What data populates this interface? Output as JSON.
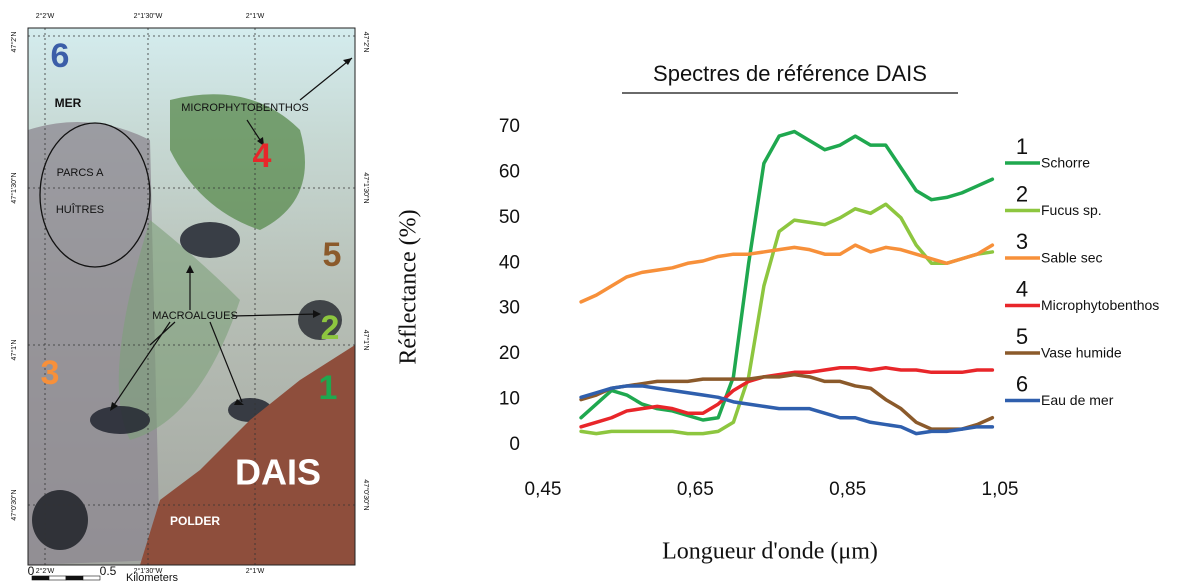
{
  "chart_data": {
    "type": "line",
    "title": "Spectres de référence DAIS",
    "xlabel": "Longueur d'onde (μm)",
    "ylabel": "Réflectance (%)",
    "x": [
      0.5,
      0.52,
      0.54,
      0.56,
      0.58,
      0.6,
      0.62,
      0.64,
      0.66,
      0.68,
      0.7,
      0.72,
      0.74,
      0.76,
      0.78,
      0.8,
      0.82,
      0.84,
      0.86,
      0.88,
      0.9,
      0.92,
      0.94,
      0.96,
      0.98,
      1.0,
      1.02,
      1.04
    ],
    "xlim": [
      0.45,
      1.05
    ],
    "xticks": [
      {
        "value": 0.45,
        "label": "0,45"
      },
      {
        "value": 0.65,
        "label": "0,65"
      },
      {
        "value": 0.85,
        "label": "0,85"
      },
      {
        "value": 1.05,
        "label": "1,05"
      }
    ],
    "ylim": [
      0,
      70
    ],
    "yticks": [
      0,
      10,
      20,
      30,
      40,
      50,
      60,
      70
    ],
    "grid": false,
    "series": [
      {
        "number": "1",
        "name": "Schorre",
        "color": "#1fa84f",
        "values": [
          6,
          9,
          12,
          11,
          9,
          8,
          7.5,
          6.5,
          5.5,
          6,
          15,
          40,
          62,
          68,
          69,
          67,
          65,
          66,
          68,
          66,
          66,
          61,
          56,
          54,
          54.5,
          55.5,
          57,
          58.5
        ]
      },
      {
        "number": "2",
        "name": "Fucus sp.",
        "color": "#8dc63f",
        "values": [
          3,
          2.5,
          3,
          3,
          3,
          3,
          3,
          2.5,
          2.5,
          3,
          5,
          15,
          35,
          47,
          49.5,
          49,
          48.5,
          50,
          52,
          51,
          53,
          50,
          44,
          40,
          40,
          41,
          42,
          42.5
        ]
      },
      {
        "number": "3",
        "name": "Sable sec",
        "color": "#f7903a",
        "values": [
          31.5,
          33,
          35,
          37,
          38,
          38.5,
          39,
          40,
          40.5,
          41.5,
          42,
          42,
          42.5,
          43,
          43.5,
          43,
          42,
          42,
          44,
          42.5,
          43.5,
          43,
          42,
          41,
          40,
          41,
          42,
          44
        ]
      },
      {
        "number": "4",
        "name": "Microphytobenthos",
        "color": "#e8262a",
        "values": [
          4,
          5,
          6,
          7.5,
          8,
          8.5,
          8,
          7,
          7,
          9,
          12,
          14,
          15,
          15.5,
          16,
          16,
          16.5,
          17,
          17,
          16.5,
          17,
          16.5,
          16.5,
          16,
          16,
          16,
          16.5,
          16.5
        ]
      },
      {
        "number": "5",
        "name": "Vase humide",
        "color": "#8b5a2b",
        "values": [
          10,
          11,
          12.5,
          13,
          13.5,
          14,
          14,
          14,
          14.5,
          14.5,
          14.5,
          14.5,
          15,
          15,
          15.5,
          15,
          14,
          14,
          13,
          12.5,
          10,
          8,
          5,
          3.5,
          3.5,
          3.5,
          4.5,
          6
        ]
      },
      {
        "number": "6",
        "name": "Eau de mer",
        "color": "#2f5fad",
        "values": [
          10.5,
          11.5,
          12.5,
          13,
          13,
          12.5,
          12,
          11.5,
          11,
          10.5,
          9.5,
          9,
          8.5,
          8,
          8,
          8,
          7,
          6,
          6,
          5,
          4.5,
          4,
          2.5,
          3,
          3,
          3.5,
          4,
          4
        ]
      }
    ]
  },
  "map": {
    "top_ticks": [
      "2°2'W",
      "2°1'30\"W",
      "2°1'W"
    ],
    "bottom_ticks": [
      "2°2'W",
      "2°1'30\"W",
      "2°1'W"
    ],
    "left_ticks": [
      "47°2'N",
      "47°1'30\"N",
      "47°1'N",
      "47°0'30\"N"
    ],
    "right_ticks": [
      "47°2'N",
      "47°1'30\"N",
      "47°1'N",
      "47°0'30\"N"
    ],
    "zones": [
      "6",
      "4",
      "5",
      "2",
      "3",
      "1"
    ],
    "labels": [
      "MER",
      "MICROPHYTOBENTHOS",
      "PARCS A",
      "HUÎTRES",
      "MACROALGUES",
      "DAIS",
      "POLDER"
    ],
    "scale": [
      "0",
      "0.5",
      "Kilometers"
    ]
  }
}
